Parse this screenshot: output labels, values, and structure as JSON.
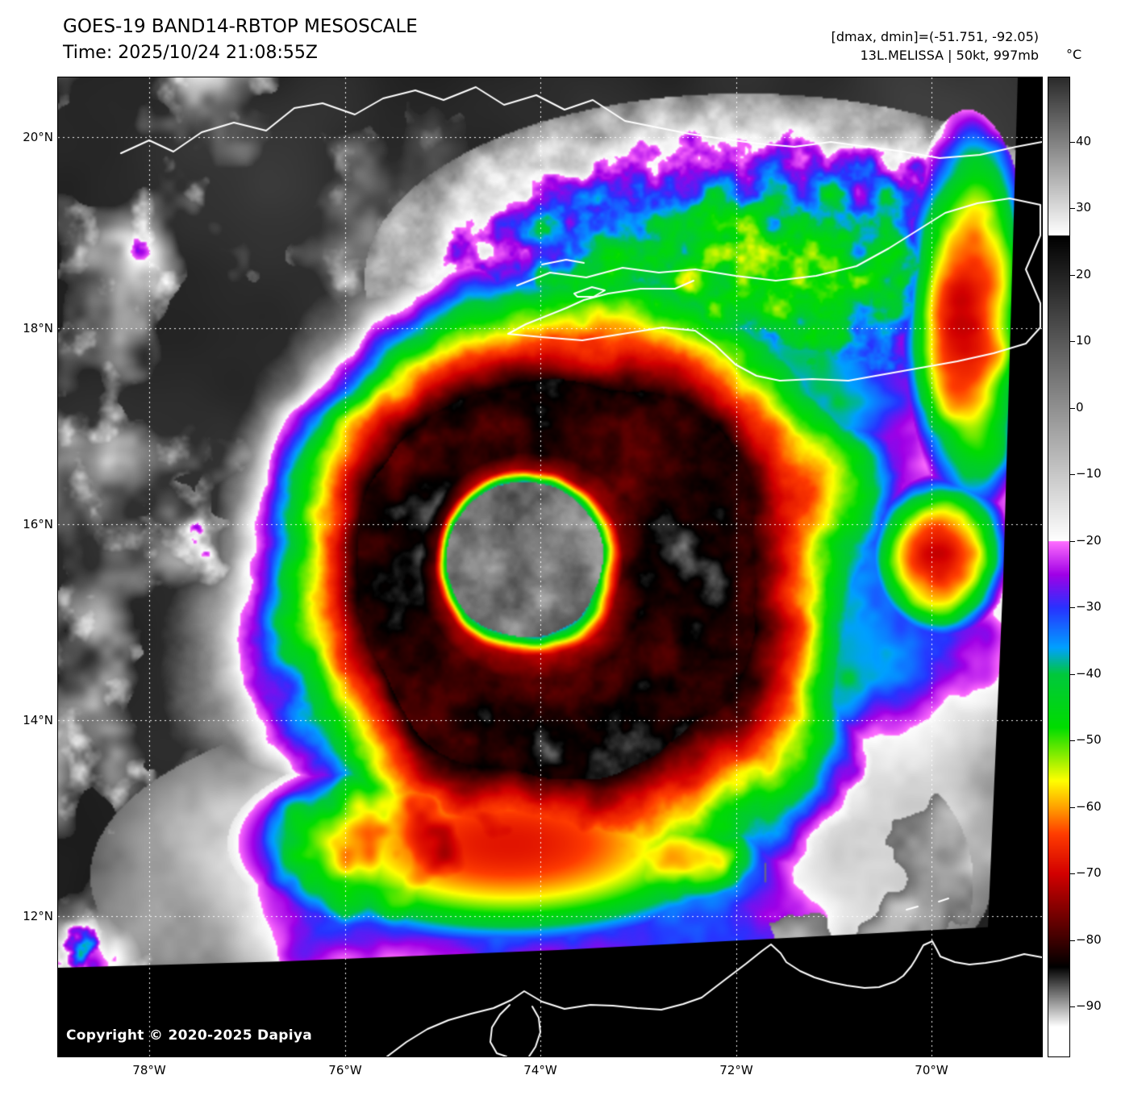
{
  "header": {
    "title": "GOES-19 BAND14-RBTOP MESOSCALE",
    "time_line": "Time: 2025/10/24 21:08:55Z",
    "dmax_dmin": "[dmax, dmin]=(-51.751, -92.05)",
    "storm_info": "13L.MELISSA | 50kt, 997mb"
  },
  "map": {
    "copyright": "Copyright © 2020-2025 Dapiya",
    "lat_labels": [
      "20°N",
      "18°N",
      "16°N",
      "14°N",
      "12°N"
    ],
    "lon_labels": [
      "78°W",
      "76°W",
      "74°W",
      "72°W",
      "70°W"
    ]
  },
  "colorbar": {
    "unit": "°C",
    "ticks": [
      40,
      30,
      20,
      10,
      0,
      -10,
      -20,
      -30,
      -40,
      -50,
      -60,
      -70,
      -80,
      -90
    ],
    "palette": [
      [
        50,
        "#282828"
      ],
      [
        26.05,
        "#ffffff"
      ],
      [
        26,
        "#000000"
      ],
      [
        -19.95,
        "#ffffff"
      ],
      [
        -20,
        "#ff6eff"
      ],
      [
        -25,
        "#a000e6"
      ],
      [
        -30,
        "#2832ff"
      ],
      [
        -36,
        "#00a0ff"
      ],
      [
        -40,
        "#00c83c"
      ],
      [
        -48,
        "#00dc00"
      ],
      [
        -53,
        "#a0f000"
      ],
      [
        -56,
        "#ffff00"
      ],
      [
        -60,
        "#ffa000"
      ],
      [
        -64,
        "#ff3c00"
      ],
      [
        -70,
        "#d20000"
      ],
      [
        -76,
        "#780000"
      ],
      [
        -82,
        "#1e0000"
      ],
      [
        -84,
        "#000000"
      ],
      [
        -93,
        "#ffffff"
      ]
    ]
  }
}
